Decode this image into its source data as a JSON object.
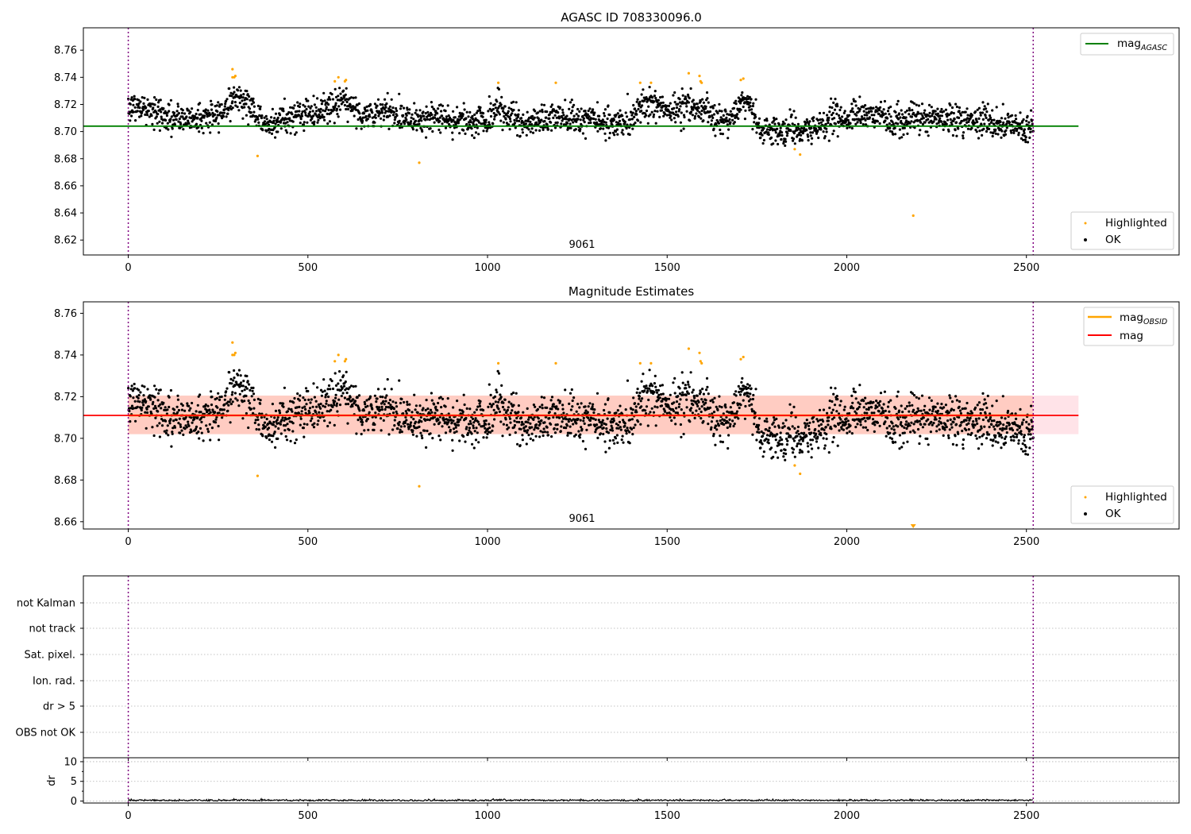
{
  "colors": {
    "ok": "#000000",
    "highlighted": "#ffa500",
    "mag_agasc": "#008000",
    "mag_obsid": "#ffa500",
    "mag": "#ff0000",
    "band_outer": "#ffc0cb",
    "band_inner": "#ffa07a",
    "obs_boundary": "#800080"
  },
  "chart_data": [
    {
      "type": "scatter",
      "title": "AGASC ID 708330096.0",
      "xlim": [
        -125,
        2925
      ],
      "ylim": [
        8.609,
        8.7765
      ],
      "xticks": [
        0,
        500,
        1000,
        1500,
        2000,
        2500
      ],
      "yticks": [
        8.62,
        8.64,
        8.66,
        8.68,
        8.7,
        8.72,
        8.74,
        8.76
      ],
      "obs_boundaries": [
        0,
        2519
      ],
      "annotation": {
        "text": "9061",
        "x": 1260
      },
      "mag_agasc": {
        "value": 8.704,
        "x_range": [
          -125,
          2645
        ]
      },
      "legend_lines": [
        {
          "label": "mag",
          "sub": "AGASC"
        }
      ],
      "legend_points": [
        "Highlighted",
        "OK"
      ],
      "series": [
        {
          "name": "OK",
          "n": 2520,
          "mean": 8.7115,
          "scatter": 0.0055,
          "trend": [
            [
              0,
              8.719
            ],
            [
              60,
              8.716
            ],
            [
              120,
              8.709
            ],
            [
              200,
              8.71
            ],
            [
              250,
              8.712
            ],
            [
              300,
              8.727
            ],
            [
              330,
              8.722
            ],
            [
              380,
              8.705
            ],
            [
              430,
              8.709
            ],
            [
              500,
              8.714
            ],
            [
              560,
              8.717
            ],
            [
              600,
              8.724
            ],
            [
              650,
              8.712
            ],
            [
              720,
              8.714
            ],
            [
              800,
              8.71
            ],
            [
              900,
              8.709
            ],
            [
              1000,
              8.708
            ],
            [
              1030,
              8.718
            ],
            [
              1100,
              8.706
            ],
            [
              1200,
              8.71
            ],
            [
              1300,
              8.709
            ],
            [
              1400,
              8.706
            ],
            [
              1430,
              8.722
            ],
            [
              1500,
              8.716
            ],
            [
              1560,
              8.72
            ],
            [
              1600,
              8.717
            ],
            [
              1650,
              8.706
            ],
            [
              1720,
              8.723
            ],
            [
              1760,
              8.701
            ],
            [
              1850,
              8.702
            ],
            [
              1880,
              8.698
            ],
            [
              1950,
              8.708
            ],
            [
              2050,
              8.712
            ],
            [
              2150,
              8.71
            ],
            [
              2300,
              8.709
            ],
            [
              2400,
              8.708
            ],
            [
              2500,
              8.702
            ],
            [
              2519,
              8.703
            ]
          ]
        },
        {
          "name": "Highlighted",
          "points": [
            [
              290,
              8.746
            ],
            [
              290,
              8.74
            ],
            [
              295,
              8.74
            ],
            [
              298,
              8.741
            ],
            [
              360,
              8.682
            ],
            [
              575,
              8.737
            ],
            [
              585,
              8.74
            ],
            [
              603,
              8.737
            ],
            [
              606,
              8.738
            ],
            [
              810,
              8.677
            ],
            [
              1030,
              8.736
            ],
            [
              1190,
              8.736
            ],
            [
              1425,
              8.736
            ],
            [
              1455,
              8.736
            ],
            [
              1560,
              8.743
            ],
            [
              1590,
              8.741
            ],
            [
              1593,
              8.737
            ],
            [
              1596,
              8.736
            ],
            [
              1705,
              8.738
            ],
            [
              1712,
              8.739
            ],
            [
              1855,
              8.687
            ],
            [
              1870,
              8.683
            ],
            [
              2185,
              8.638
            ]
          ]
        }
      ]
    },
    {
      "type": "scatter",
      "title": "Magnitude Estimates",
      "xlim": [
        -125,
        2925
      ],
      "ylim": [
        8.6565,
        8.7655
      ],
      "xticks": [
        0,
        500,
        1000,
        1500,
        2000,
        2500
      ],
      "yticks": [
        8.66,
        8.68,
        8.7,
        8.72,
        8.74,
        8.76
      ],
      "obs_boundaries": [
        0,
        2519
      ],
      "annotation": {
        "text": "9061",
        "x": 1260
      },
      "mag": {
        "value": 8.711,
        "x_range": [
          -125,
          2645
        ]
      },
      "mag_obsid": {
        "value": 8.711,
        "x_range": [
          0,
          2519
        ]
      },
      "mag_band": {
        "low": 8.702,
        "high": 8.7205
      },
      "legend_lines": [
        {
          "label": "mag",
          "sub": "OBSID"
        },
        {
          "label": "mag",
          "sub": ""
        }
      ],
      "legend_points": [
        "Highlighted",
        "OK"
      ],
      "series": [
        {
          "name": "OK",
          "same_as": "first panel"
        },
        {
          "name": "Highlighted",
          "same_as": "first panel",
          "clipped_below": [
            2185,
            8.6575
          ]
        }
      ]
    },
    {
      "type": "table",
      "flag_labels": [
        "not Kalman",
        "not track",
        "Sat. pixel.",
        "Ion. rad.",
        "dr > 5",
        "OBS not OK"
      ],
      "flags_set": [],
      "xlim": [
        -125,
        2925
      ],
      "xticks": [
        0,
        500,
        1000,
        1500,
        2000,
        2500
      ],
      "obs_boundaries": [
        0,
        2519
      ]
    },
    {
      "type": "line",
      "ylabel": "dr",
      "ylim": [
        -0.5,
        11
      ],
      "yticks": [
        0,
        5,
        10
      ],
      "xlim": [
        -125,
        2925
      ],
      "xticks": [
        0,
        500,
        1000,
        1500,
        2000,
        2500
      ],
      "dr_mean": 0.2,
      "dr_max": 0.6,
      "obs_boundaries": [
        0,
        2519
      ]
    }
  ]
}
